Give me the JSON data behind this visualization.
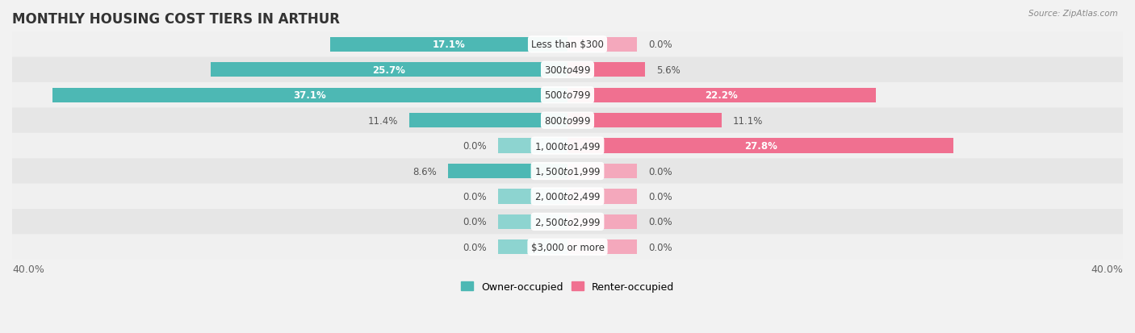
{
  "title": "MONTHLY HOUSING COST TIERS IN ARTHUR",
  "source": "Source: ZipAtlas.com",
  "categories": [
    "Less than $300",
    "$300 to $499",
    "$500 to $799",
    "$800 to $999",
    "$1,000 to $1,499",
    "$1,500 to $1,999",
    "$2,000 to $2,499",
    "$2,500 to $2,999",
    "$3,000 or more"
  ],
  "owner_values": [
    17.1,
    25.7,
    37.1,
    11.4,
    0.0,
    8.6,
    0.0,
    0.0,
    0.0
  ],
  "renter_values": [
    0.0,
    5.6,
    22.2,
    11.1,
    27.8,
    0.0,
    0.0,
    0.0,
    0.0
  ],
  "owner_color": "#4db8b4",
  "renter_color": "#f07090",
  "owner_color_light": "#8dd4d0",
  "renter_color_light": "#f4a8bc",
  "row_bg_colors": [
    "#f0f0f0",
    "#e6e6e6"
  ],
  "max_value": 40.0,
  "stub_size": 5.0,
  "title_fontsize": 12,
  "label_fontsize": 8.5,
  "value_fontsize": 8.5,
  "tick_fontsize": 9,
  "legend_fontsize": 9,
  "bar_height": 0.58,
  "white_label_inside_threshold": 15.0
}
